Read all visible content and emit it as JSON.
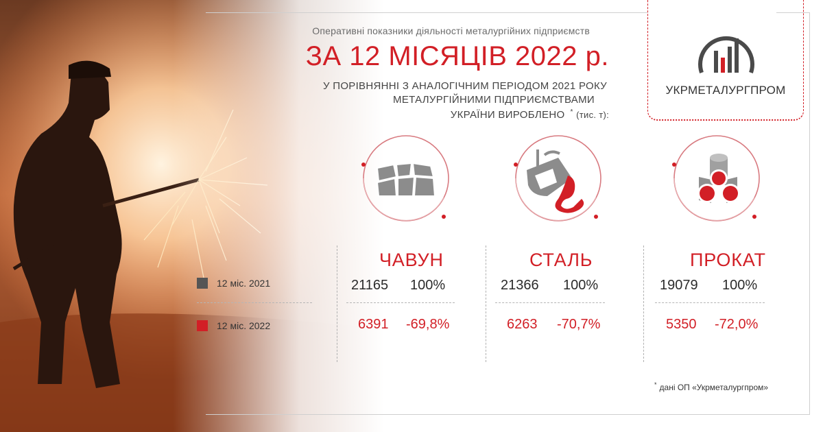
{
  "header": {
    "subtitle": "Оперативні показники діяльності металургійних підприємств",
    "title": "ЗА 12 МІСЯЦІВ 2022 р.",
    "description_line1": "У ПОРІВНЯННІ З АНАЛОГІЧНИМ ПЕРІОДОМ 2021 РОКУ",
    "description_line2": "МЕТАЛУРГІЙНИМИ ПІДПРИЄМСТВАМИ",
    "description_line3": "УКРАЇНИ ВИРОБЛЕНО",
    "asterisk": "*",
    "unit": "(тис. т):"
  },
  "logo": {
    "name": "УКРМЕТАЛУРГПРОМ"
  },
  "legend": {
    "prev_label": "12 міс. 2021",
    "curr_label": "12 міс. 2022",
    "prev_color": "#555555",
    "curr_color": "#d21f26"
  },
  "products": [
    {
      "name": "ЧАВУН",
      "icon": "pig-iron-stones-icon",
      "prev_value": "21165",
      "prev_percent": "100%",
      "curr_value": "6391",
      "curr_percent": "-69,8%"
    },
    {
      "name": "СТАЛЬ",
      "icon": "steel-ladle-pour-icon",
      "prev_value": "21366",
      "prev_percent": "100%",
      "curr_value": "6263",
      "curr_percent": "-70,7%"
    },
    {
      "name": "ПРОКАТ",
      "icon": "rolled-pipes-icon",
      "prev_value": "19079",
      "prev_percent": "100%",
      "curr_value": "5350",
      "curr_percent": "-72,0%"
    }
  ],
  "footnote": {
    "asterisk": "*",
    "text": "дані ОП «Укрметалургпром»"
  },
  "colors": {
    "accent": "#d21f26",
    "text_dark": "#2b2b2b",
    "text_muted": "#6a6a6a"
  }
}
